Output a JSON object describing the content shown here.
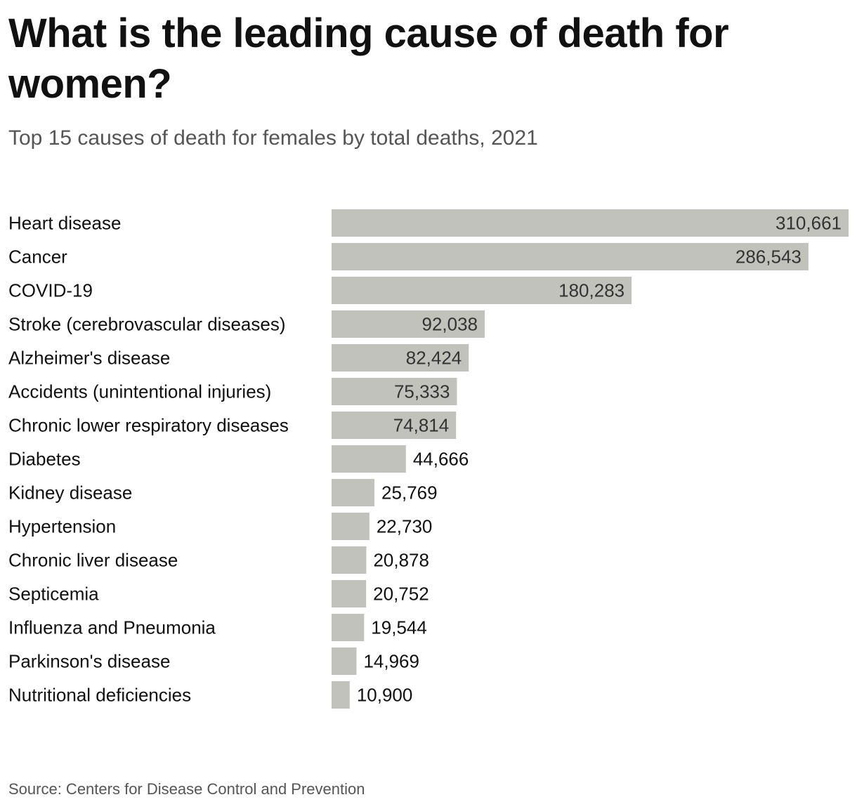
{
  "header": {
    "title": "What is the leading cause of death for women?",
    "subtitle": "Top 15 causes of death for females by total deaths, 2021"
  },
  "footer": {
    "source": "Source: Centers for Disease Control and Prevention"
  },
  "colors": {
    "bar": "#c2c2bd",
    "label_inside": "#333333",
    "label_outside": "#111111"
  },
  "chart_data": {
    "type": "bar",
    "orientation": "horizontal",
    "title": "What is the leading cause of death for women?",
    "subtitle": "Top 15 causes of death for females by total deaths, 2021",
    "source": "Source: Centers for Disease Control and Prevention",
    "categories": [
      "Heart disease",
      "Cancer",
      "COVID-19",
      "Stroke (cerebrovascular diseases)",
      "Alzheimer's disease",
      "Accidents (unintentional injuries)",
      "Chronic lower respiratory diseases",
      "Diabetes",
      "Kidney disease",
      "Hypertension",
      "Chronic liver disease",
      "Septicemia",
      "Influenza and Pneumonia",
      "Parkinson's disease",
      "Nutritional deficiencies"
    ],
    "values": [
      310661,
      286543,
      180283,
      92038,
      82424,
      75333,
      74814,
      44666,
      25769,
      22730,
      20878,
      20752,
      19544,
      14969,
      10900
    ],
    "value_labels": [
      "310,661",
      "286,543",
      "180,283",
      "92,038",
      "82,424",
      "75,333",
      "74,814",
      "44,666",
      "25,769",
      "22,730",
      "20,878",
      "20,752",
      "19,544",
      "14,969",
      "10,900"
    ],
    "xlabel": "",
    "ylabel": "",
    "xlim": [
      0,
      310661
    ],
    "grid": false,
    "legend": "none"
  }
}
